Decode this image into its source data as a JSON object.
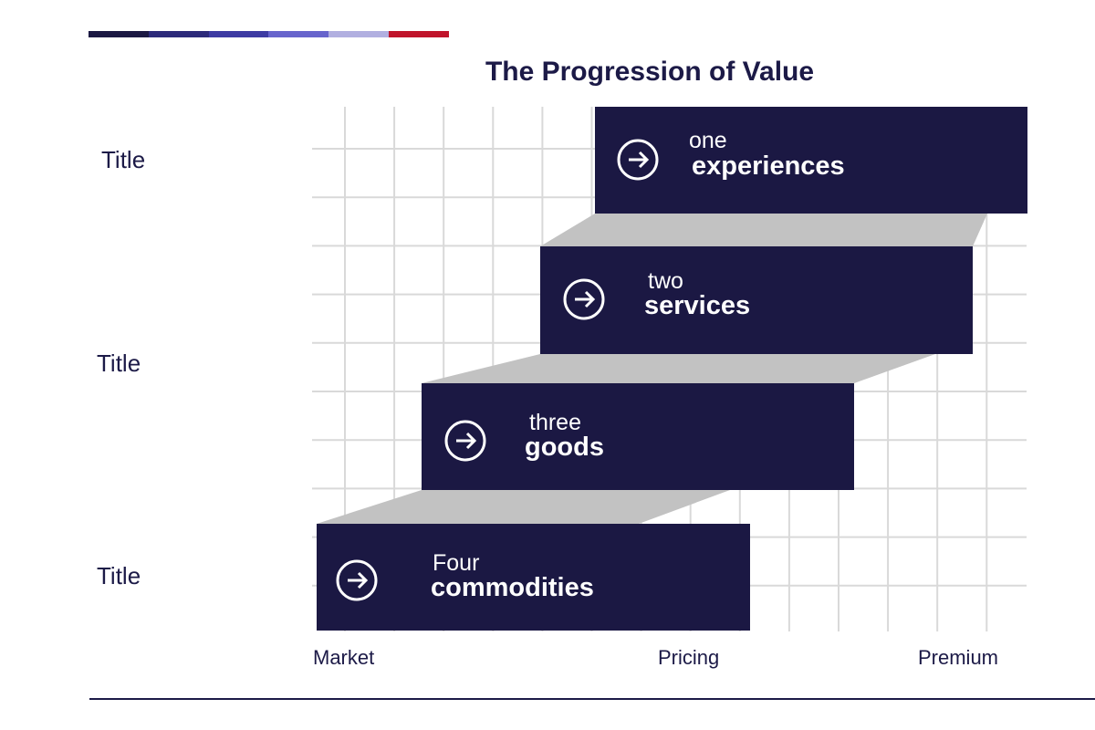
{
  "title": "The Progression of Value",
  "row_titles": [
    "Title",
    "Title",
    "Title"
  ],
  "stages": [
    {
      "number": "one",
      "name": "experiences",
      "icon": "arrow-right-circle-icon"
    },
    {
      "number": "two",
      "name": "services",
      "icon": "arrow-right-circle-icon"
    },
    {
      "number": "three",
      "name": "goods",
      "icon": "arrow-right-circle-icon"
    },
    {
      "number": "Four",
      "name": "commodities",
      "icon": "arrow-right-circle-icon"
    }
  ],
  "axis": {
    "left": "Market",
    "middle": "Pricing",
    "right": "Premium"
  },
  "colors": {
    "box": "#1b1843",
    "connector": "#c2c2c2",
    "grid": "#d9d9d9",
    "text_dark": "#1c1a47",
    "accent": [
      "#1b1843",
      "#2c2a7a",
      "#3d3ba3",
      "#6764cc",
      "#b1afe0",
      "#c0142b"
    ]
  }
}
